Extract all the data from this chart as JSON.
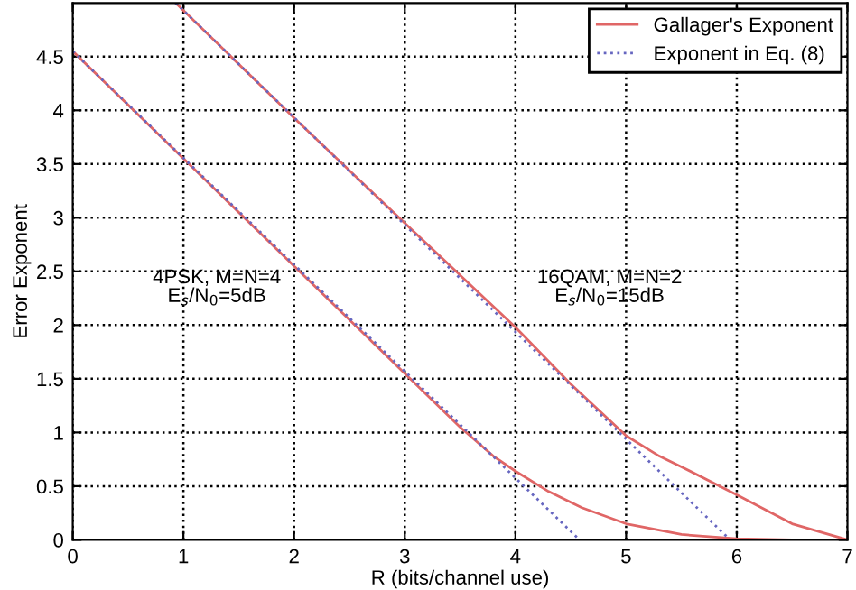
{
  "chart_data": {
    "type": "line",
    "xlabel": "R (bits/channel use)",
    "ylabel": "Error Exponent",
    "xlim": [
      0,
      7
    ],
    "ylim": [
      0,
      5
    ],
    "xticks": [
      0,
      1,
      2,
      3,
      4,
      5,
      6,
      7
    ],
    "yticks": [
      0,
      0.5,
      1,
      1.5,
      2,
      2.5,
      3,
      3.5,
      4,
      4.5
    ],
    "grid": true,
    "legend": "top right",
    "series": [
      {
        "name": "Gallager's Exponent",
        "color": "#e06666",
        "line_style": "solid",
        "x": [
          0,
          1,
          2,
          3,
          3.5,
          3.8,
          4,
          4.3,
          4.6,
          5,
          5.5,
          6,
          6.5,
          7
        ],
        "values": [
          4.55,
          3.55,
          2.55,
          1.55,
          1.05,
          0.78,
          0.64,
          0.45,
          0.3,
          0.15,
          0.05,
          0.01,
          0,
          0
        ]
      },
      {
        "name": "Exponent in Eq. (8)",
        "color": "#6666c0",
        "line_style": "dotted",
        "x": [
          0,
          4.58
        ],
        "values": [
          4.55,
          0
        ]
      },
      {
        "color": "#e06666",
        "line_style": "solid",
        "x": [
          0.93,
          2,
          3,
          4,
          4.5,
          5,
          5.3,
          5.5,
          6,
          6.5,
          7
        ],
        "values": [
          5,
          3.93,
          2.95,
          1.98,
          1.45,
          0.97,
          0.78,
          0.68,
          0.42,
          0.15,
          0
        ]
      },
      {
        "color": "#6666c0",
        "line_style": "dotted",
        "x": [
          0.93,
          5.94
        ],
        "values": [
          5,
          0
        ]
      }
    ],
    "annotations": [
      "4PSK, M=N=4\nE$_{s}$/N$_{0}$=5dB",
      "16QAM, M=N=2\nE$_{s}$/N$_{0}$=15dB"
    ]
  }
}
